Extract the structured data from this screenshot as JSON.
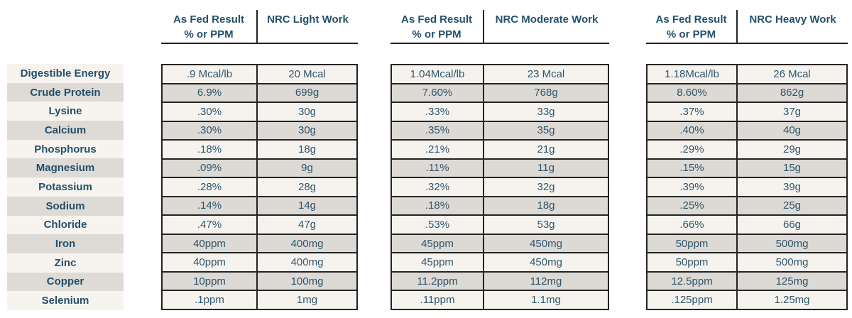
{
  "rows": [
    "Digestible Energy",
    "Crude Protein",
    "Lysine",
    "Calcium",
    "Phosphorus",
    "Magnesium",
    "Potassium",
    "Sodium",
    "Chloride",
    "Iron",
    "Zinc",
    "Copper",
    "Selenium"
  ],
  "groups": [
    {
      "header_col1_line1": "As Fed Result",
      "header_col1_line2": "% or PPM",
      "header_col2": "NRC Light Work",
      "values": [
        [
          ".9 Mcal/lb",
          "20 Mcal"
        ],
        [
          "6.9%",
          "699g"
        ],
        [
          ".30%",
          "30g"
        ],
        [
          ".30%",
          "30g"
        ],
        [
          ".18%",
          "18g"
        ],
        [
          ".09%",
          "9g"
        ],
        [
          ".28%",
          "28g"
        ],
        [
          ".14%",
          "14g"
        ],
        [
          ".47%",
          "47g"
        ],
        [
          "40ppm",
          "400mg"
        ],
        [
          "40ppm",
          "400mg"
        ],
        [
          "10ppm",
          "100mg"
        ],
        [
          ".1ppm",
          "1mg"
        ]
      ]
    },
    {
      "header_col1_line1": "As Fed Result",
      "header_col1_line2": "% or PPM",
      "header_col2": "NRC Moderate Work",
      "values": [
        [
          "1.04Mcal/lb",
          "23 Mcal"
        ],
        [
          "7.60%",
          "768g"
        ],
        [
          ".33%",
          "33g"
        ],
        [
          ".35%",
          "35g"
        ],
        [
          ".21%",
          "21g"
        ],
        [
          ".11%",
          "11g"
        ],
        [
          ".32%",
          "32g"
        ],
        [
          ".18%",
          "18g"
        ],
        [
          ".53%",
          "53g"
        ],
        [
          "45ppm",
          "450mg"
        ],
        [
          "45ppm",
          "450mg"
        ],
        [
          "11.2ppm",
          "112mg"
        ],
        [
          ".11ppm",
          "1.1mg"
        ]
      ]
    },
    {
      "header_col1_line1": "As Fed Result",
      "header_col1_line2": "% or PPM",
      "header_col2": "NRC Heavy Work",
      "values": [
        [
          "1.18Mcal/lb",
          "26 Mcal"
        ],
        [
          "8.60%",
          "862g"
        ],
        [
          ".37%",
          "37g"
        ],
        [
          ".40%",
          "40g"
        ],
        [
          ".29%",
          "29g"
        ],
        [
          ".15%",
          "15g"
        ],
        [
          ".39%",
          "39g"
        ],
        [
          ".25%",
          "25g"
        ],
        [
          ".66%",
          "66g"
        ],
        [
          "50ppm",
          "500mg"
        ],
        [
          "50ppm",
          "500mg"
        ],
        [
          "12.5ppm",
          "125mg"
        ],
        [
          ".125ppm",
          "1.25mg"
        ]
      ]
    }
  ],
  "colors": {
    "heading_text": "#25506B",
    "value_text": "#2E566D",
    "grid_border": "#242424",
    "row_light": "#F6F3EF",
    "row_shaded": "#DDD9D4",
    "label_light": "#F7F4F0",
    "label_shaded": "#DEDAD5",
    "background": "#FFFFFF"
  }
}
